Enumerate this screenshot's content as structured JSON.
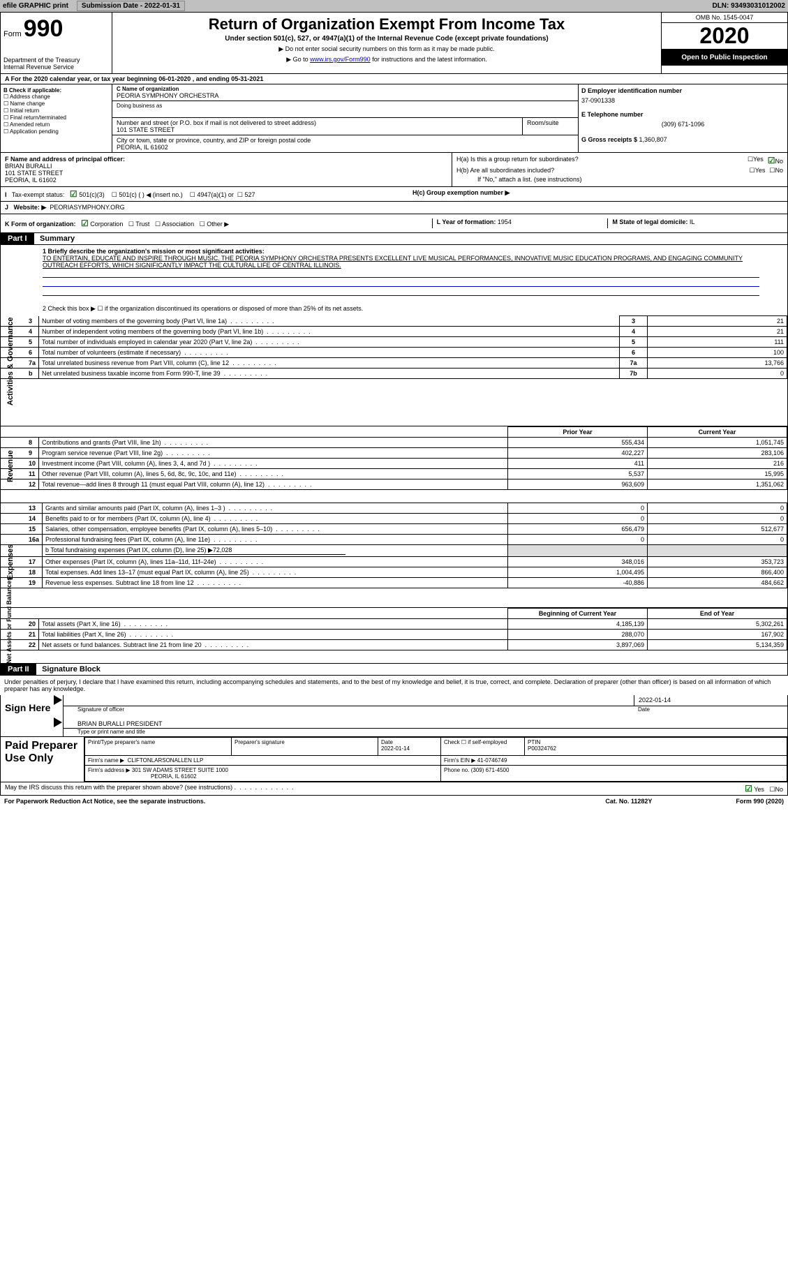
{
  "topbar": {
    "efile": "efile GRAPHIC print",
    "submission": "Submission Date - 2022-01-31",
    "dln": "DLN: 93493031012002"
  },
  "header": {
    "form_label": "Form",
    "form_no": "990",
    "dept1": "Department of the Treasury",
    "dept2": "Internal Revenue Service",
    "title": "Return of Organization Exempt From Income Tax",
    "sub1": "Under section 501(c), 527, or 4947(a)(1) of the Internal Revenue Code (except private foundations)",
    "sub2": "▶ Do not enter social security numbers on this form as it may be made public.",
    "sub3_pre": "▶ Go to ",
    "sub3_link": "www.irs.gov/Form990",
    "sub3_post": " for instructions and the latest information.",
    "omb": "OMB No. 1545-0047",
    "year": "2020",
    "open": "Open to Public Inspection"
  },
  "rowA": "A For the 2020 calendar year, or tax year beginning 06-01-2020    , and ending 05-31-2021",
  "boxB": {
    "title": "B Check if applicable:",
    "c1": "Address change",
    "c2": "Name change",
    "c3": "Initial return",
    "c4": "Final return/terminated",
    "c5": "Amended return",
    "c6": "Application pending"
  },
  "boxC": {
    "lbl": "C Name of organization",
    "name": "PEORIA SYMPHONY ORCHESTRA",
    "dba_lbl": "Doing business as",
    "addr_lbl": "Number and street (or P.O. box if mail is not delivered to street address)",
    "room": "Room/suite",
    "addr": "101 STATE STREET",
    "city_lbl": "City or town, state or province, country, and ZIP or foreign postal code",
    "city": "PEORIA, IL  61602"
  },
  "boxD": {
    "lbl": "D Employer identification number",
    "val": "37-0901338"
  },
  "boxE": {
    "lbl": "E Telephone number",
    "val": "(309) 671-1096"
  },
  "boxG": {
    "lbl": "G Gross receipts $ ",
    "val": "1,360,807"
  },
  "boxF": {
    "lbl": "F  Name and address of principal officer:",
    "name": "BRIAN BURALLI",
    "addr1": "101 STATE STREET",
    "addr2": "PEORIA, IL  61602"
  },
  "boxH": {
    "ha": "H(a)  Is this a group return for subordinates?",
    "hb": "H(b)  Are all subordinates included?",
    "hb_note": "If \"No,\" attach a list. (see instructions)",
    "hc": "H(c)  Group exemption number ▶",
    "yes": "Yes",
    "no": "No"
  },
  "rowI": {
    "lbl": "Tax-exempt status:",
    "o1": "501(c)(3)",
    "o2": "501(c) (  ) ◀ (insert no.)",
    "o3": "4947(a)(1) or",
    "o4": "527"
  },
  "rowJ": {
    "lbl": "Website: ▶",
    "val": "PEORIASYMPHONY.ORG"
  },
  "rowK": {
    "lbl": "K Form of organization:",
    "o1": "Corporation",
    "o2": "Trust",
    "o3": "Association",
    "o4": "Other ▶"
  },
  "rowL": {
    "lbl": "L Year of formation: ",
    "val": "1954"
  },
  "rowM": {
    "lbl": "M State of legal domicile: ",
    "val": "IL"
  },
  "part1": {
    "hdr": "Part I",
    "title": "Summary"
  },
  "summary": {
    "line1_lbl": "1  Briefly describe the organization's mission or most significant activities:",
    "mission": "TO ENTERTAIN, EDUCATE AND INSPIRE THROUGH MUSIC. THE PEORIA SYMPHONY ORCHESTRA PRESENTS EXCELLENT LIVE MUSICAL PERFORMANCES, INNOVATIVE MUSIC EDUCATION PROGRAMS, AND ENGAGING COMMUNITY OUTREACH EFFORTS, WHICH SIGNIFICANTLY IMPACT THE CULTURAL LIFE OF CENTRAL ILLINOIS.",
    "line2": "2   Check this box ▶ ☐  if the organization discontinued its operations or disposed of more than 25% of its net assets.",
    "vert1": "Activities & Governance",
    "vert2": "Revenue",
    "vert3": "Expenses",
    "vert4": "Net Assets or Fund Balances",
    "head_prior": "Prior Year",
    "head_current": "Current Year",
    "head_begin": "Beginning of Current Year",
    "head_end": "End of Year"
  },
  "lines_top": [
    {
      "n": "3",
      "d": "Number of voting members of the governing body (Part VI, line 1a)",
      "b": "3",
      "v": "21"
    },
    {
      "n": "4",
      "d": "Number of independent voting members of the governing body (Part VI, line 1b)",
      "b": "4",
      "v": "21"
    },
    {
      "n": "5",
      "d": "Total number of individuals employed in calendar year 2020 (Part V, line 2a)",
      "b": "5",
      "v": "111"
    },
    {
      "n": "6",
      "d": "Total number of volunteers (estimate if necessary)",
      "b": "6",
      "v": "100"
    },
    {
      "n": "7a",
      "d": "Total unrelated business revenue from Part VIII, column (C), line 12",
      "b": "7a",
      "v": "13,766"
    },
    {
      "n": "b",
      "d": "Net unrelated business taxable income from Form 990-T, line 39",
      "b": "7b",
      "v": "0"
    }
  ],
  "lines_rev": [
    {
      "n": "8",
      "d": "Contributions and grants (Part VIII, line 1h)",
      "p": "555,434",
      "c": "1,051,745"
    },
    {
      "n": "9",
      "d": "Program service revenue (Part VIII, line 2g)",
      "p": "402,227",
      "c": "283,106"
    },
    {
      "n": "10",
      "d": "Investment income (Part VIII, column (A), lines 3, 4, and 7d )",
      "p": "411",
      "c": "216"
    },
    {
      "n": "11",
      "d": "Other revenue (Part VIII, column (A), lines 5, 6d, 8c, 9c, 10c, and 11e)",
      "p": "5,537",
      "c": "15,995"
    },
    {
      "n": "12",
      "d": "Total revenue—add lines 8 through 11 (must equal Part VIII, column (A), line 12)",
      "p": "963,609",
      "c": "1,351,062"
    }
  ],
  "lines_exp": [
    {
      "n": "13",
      "d": "Grants and similar amounts paid (Part IX, column (A), lines 1–3 )",
      "p": "0",
      "c": "0"
    },
    {
      "n": "14",
      "d": "Benefits paid to or for members (Part IX, column (A), line 4)",
      "p": "0",
      "c": "0"
    },
    {
      "n": "15",
      "d": "Salaries, other compensation, employee benefits (Part IX, column (A), lines 5–10)",
      "p": "656,479",
      "c": "512,677"
    },
    {
      "n": "16a",
      "d": "Professional fundraising fees (Part IX, column (A), line 11e)",
      "p": "0",
      "c": "0"
    }
  ],
  "line16b": "b   Total fundraising expenses (Part IX, column (D), line 25) ▶72,028",
  "lines_exp2": [
    {
      "n": "17",
      "d": "Other expenses (Part IX, column (A), lines 11a–11d, 11f–24e)",
      "p": "348,016",
      "c": "353,723"
    },
    {
      "n": "18",
      "d": "Total expenses. Add lines 13–17 (must equal Part IX, column (A), line 25)",
      "p": "1,004,495",
      "c": "866,400"
    },
    {
      "n": "19",
      "d": "Revenue less expenses. Subtract line 18 from line 12",
      "p": "-40,886",
      "c": "484,662"
    }
  ],
  "lines_net": [
    {
      "n": "20",
      "d": "Total assets (Part X, line 16)",
      "p": "4,185,139",
      "c": "5,302,261"
    },
    {
      "n": "21",
      "d": "Total liabilities (Part X, line 26)",
      "p": "288,070",
      "c": "167,902"
    },
    {
      "n": "22",
      "d": "Net assets or fund balances. Subtract line 21 from line 20",
      "p": "3,897,069",
      "c": "5,134,359"
    }
  ],
  "part2": {
    "hdr": "Part II",
    "title": "Signature Block"
  },
  "sig": {
    "declaration": "Under penalties of perjury, I declare that I have examined this return, including accompanying schedules and statements, and to the best of my knowledge and belief, it is true, correct, and complete. Declaration of preparer (other than officer) is based on all information of which preparer has any knowledge.",
    "sign_here": "Sign Here",
    "sig_officer": "Signature of officer",
    "date": "Date",
    "date_val": "2022-01-14",
    "name_title": "BRIAN BURALLI PRESIDENT",
    "name_title_lbl": "Type or print name and title",
    "paid": "Paid Preparer Use Only",
    "prep_name": "Print/Type preparer's name",
    "prep_sig": "Preparer's signature",
    "prep_date": "Date",
    "prep_date_val": "2022-01-14",
    "check_self": "Check ☐ if self-employed",
    "ptin_lbl": "PTIN",
    "ptin": "P00324762",
    "firm_name_lbl": "Firm's name      ▶",
    "firm_name": "CLIFTONLARSONALLEN LLP",
    "firm_ein_lbl": "Firm's EIN ▶",
    "firm_ein": "41-0746749",
    "firm_addr_lbl": "Firm's address ▶",
    "firm_addr1": "301 SW ADAMS STREET SUITE 1000",
    "firm_addr2": "PEORIA, IL  61602",
    "phone_lbl": "Phone no. ",
    "phone": "(309) 671-4500",
    "discuss": "May the IRS discuss this return with the preparer shown above? (see instructions)"
  },
  "footer": {
    "pra": "For Paperwork Reduction Act Notice, see the separate instructions.",
    "cat": "Cat. No. 11282Y",
    "form": "Form 990 (2020)"
  },
  "yn": {
    "yes": "Yes",
    "no": "No"
  }
}
